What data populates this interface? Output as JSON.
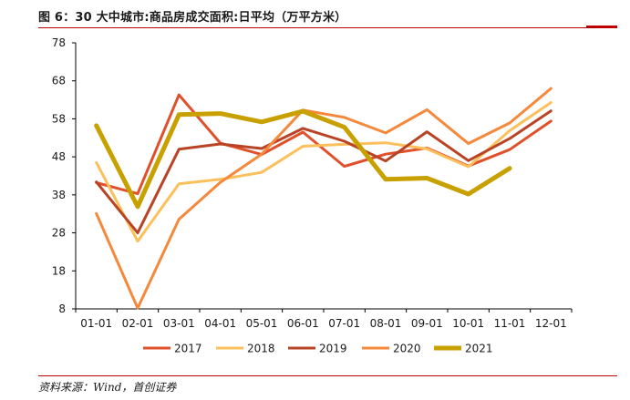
{
  "figure": {
    "title": "图 6：30 大中城市:商品房成交面积:日平均（万平方米）",
    "source": "资料来源：Wind，首创证券"
  },
  "chart_data": {
    "type": "line",
    "title": "",
    "xlabel": "",
    "ylabel": "",
    "categories": [
      "01-01",
      "02-01",
      "03-01",
      "04-01",
      "05-01",
      "06-01",
      "07-01",
      "08-01",
      "09-01",
      "10-01",
      "11-01",
      "12-01"
    ],
    "y_ticks": [
      8,
      18,
      28,
      38,
      48,
      58,
      68,
      78
    ],
    "ylim": [
      8,
      78
    ],
    "grid": false,
    "legend_position": "bottom",
    "series": [
      {
        "name": "2017",
        "color": "#e0502a",
        "width": 3,
        "values": [
          41.2,
          38.3,
          64.3,
          51.6,
          48.6,
          54.5,
          45.5,
          48.7,
          50.3,
          45.6,
          49.9,
          57.4
        ]
      },
      {
        "name": "2018",
        "color": "#fbbf5c",
        "width": 3,
        "values": [
          46.5,
          25.8,
          40.9,
          42.1,
          43.9,
          50.8,
          51.3,
          51.7,
          50.1,
          45.4,
          54.9,
          62.3
        ]
      },
      {
        "name": "2019",
        "color": "#b84425",
        "width": 3,
        "values": [
          41.4,
          28.0,
          50.0,
          51.4,
          50.2,
          55.5,
          52.1,
          46.9,
          54.6,
          47.0,
          52.8,
          60.1
        ]
      },
      {
        "name": "2020",
        "color": "#f5883a",
        "width": 3,
        "values": [
          33.1,
          8.2,
          31.6,
          41.3,
          48.7,
          60.3,
          58.4,
          54.3,
          60.4,
          51.5,
          56.9,
          66.0
        ]
      },
      {
        "name": "2021",
        "color": "#c8a000",
        "width": 5,
        "values": [
          56.2,
          34.9,
          59.1,
          59.4,
          57.2,
          60.0,
          55.8,
          42.1,
          42.4,
          38.2,
          45.0,
          null
        ]
      }
    ]
  }
}
